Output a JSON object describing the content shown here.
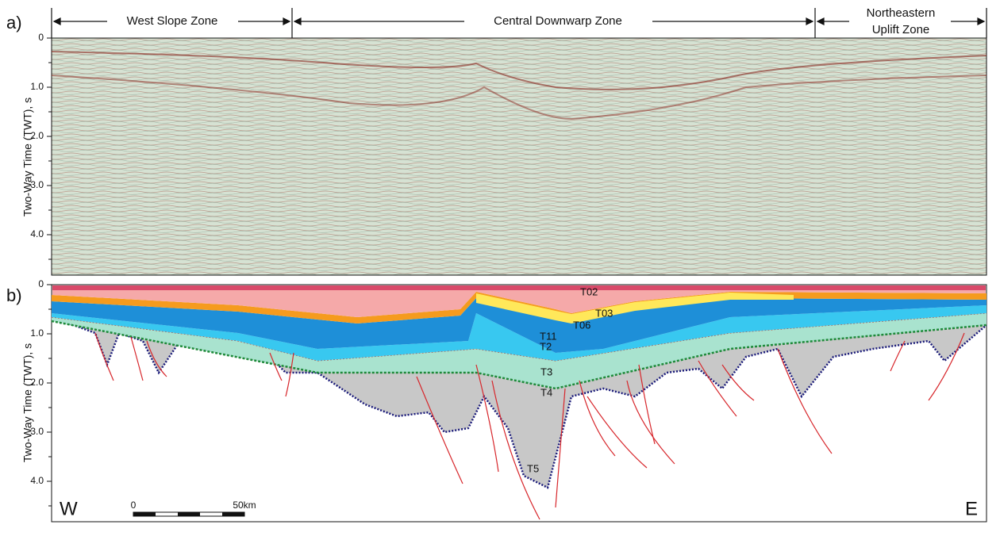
{
  "panel_a": {
    "label": "a)",
    "zones": [
      "West Slope Zone",
      "Central Downwarp Zone",
      "Northeastern",
      "Uplift Zone"
    ],
    "y_axis_label": "Two-Way Time (TWT), s",
    "yticks": [
      "0",
      "1.0",
      "2.0",
      "3.0",
      "4.0"
    ]
  },
  "panel_b": {
    "label": "b)",
    "y_axis_label": "Two-Way Time (TWT), s",
    "yticks": [
      "0",
      "1.0",
      "2.0",
      "3.0",
      "4.0"
    ],
    "horizons": [
      "T02",
      "T03",
      "T06",
      "T11",
      "T2",
      "T3",
      "T4",
      "T5"
    ],
    "west": "W",
    "east": "E",
    "scale_start": "0",
    "scale_end": "50km"
  }
}
